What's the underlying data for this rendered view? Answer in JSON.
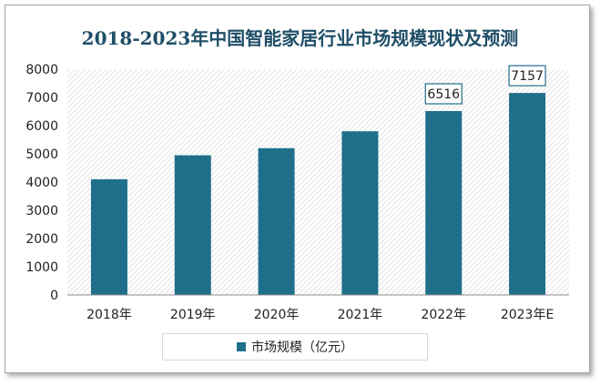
{
  "chart_data": {
    "type": "bar",
    "title": "2018-2023年中国智能家居行业市场规模现状及预测",
    "categories": [
      "2018年",
      "2019年",
      "2020年",
      "2021年",
      "2022年",
      "2023年E"
    ],
    "series": [
      {
        "name": "市场规模（亿元）",
        "values": [
          4100,
          4950,
          5200,
          5800,
          6516,
          7157
        ]
      }
    ],
    "data_labels": [
      "",
      "",
      "",
      "",
      "6516",
      "7157"
    ],
    "ylim": [
      0,
      8000
    ],
    "yticks": [
      0,
      1000,
      2000,
      3000,
      4000,
      5000,
      6000,
      7000,
      8000
    ],
    "legend_position": "bottom",
    "colors": {
      "bar": "#1f6f8b",
      "title": "#1f4e67",
      "hatch": "#d4d4d4"
    }
  }
}
